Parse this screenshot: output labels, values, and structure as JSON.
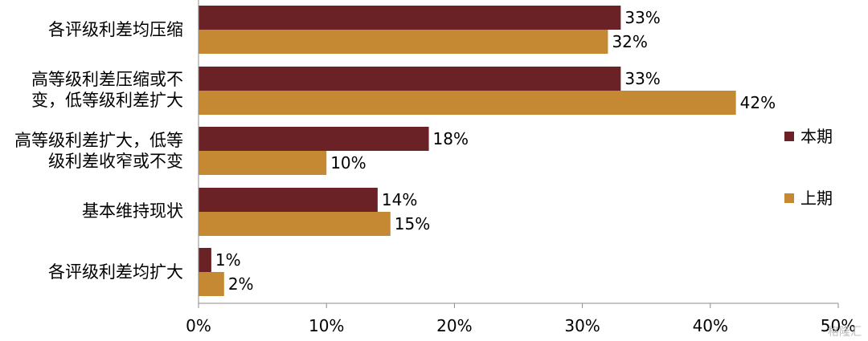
{
  "chart_data": {
    "type": "bar",
    "orientation": "horizontal",
    "categories": [
      [
        "各评级利差均压缩"
      ],
      [
        "高等级利差压缩或不",
        "变，低等级利差扩大"
      ],
      [
        "高等级利差扩大，低等",
        "级利差收窄或不变"
      ],
      [
        "基本维持现状"
      ],
      [
        "各评级利差均扩大"
      ]
    ],
    "series": [
      {
        "name": "本期",
        "values": [
          33,
          33,
          18,
          14,
          1
        ],
        "labels": [
          "33%",
          "33%",
          "18%",
          "14%",
          "1%"
        ],
        "color": "#6B2227"
      },
      {
        "name": "上期",
        "values": [
          32,
          42,
          10,
          15,
          2
        ],
        "labels": [
          "32%",
          "42%",
          "10%",
          "15%",
          "2%"
        ],
        "color": "#C58934"
      }
    ],
    "xlim": [
      0,
      50
    ],
    "ticks": [
      0,
      10,
      20,
      30,
      40,
      50
    ],
    "tick_labels": [
      "0%",
      "10%",
      "20%",
      "30%",
      "40%",
      "50%"
    ],
    "grid": false,
    "legend_position": "right"
  },
  "watermark": "格隆汇"
}
